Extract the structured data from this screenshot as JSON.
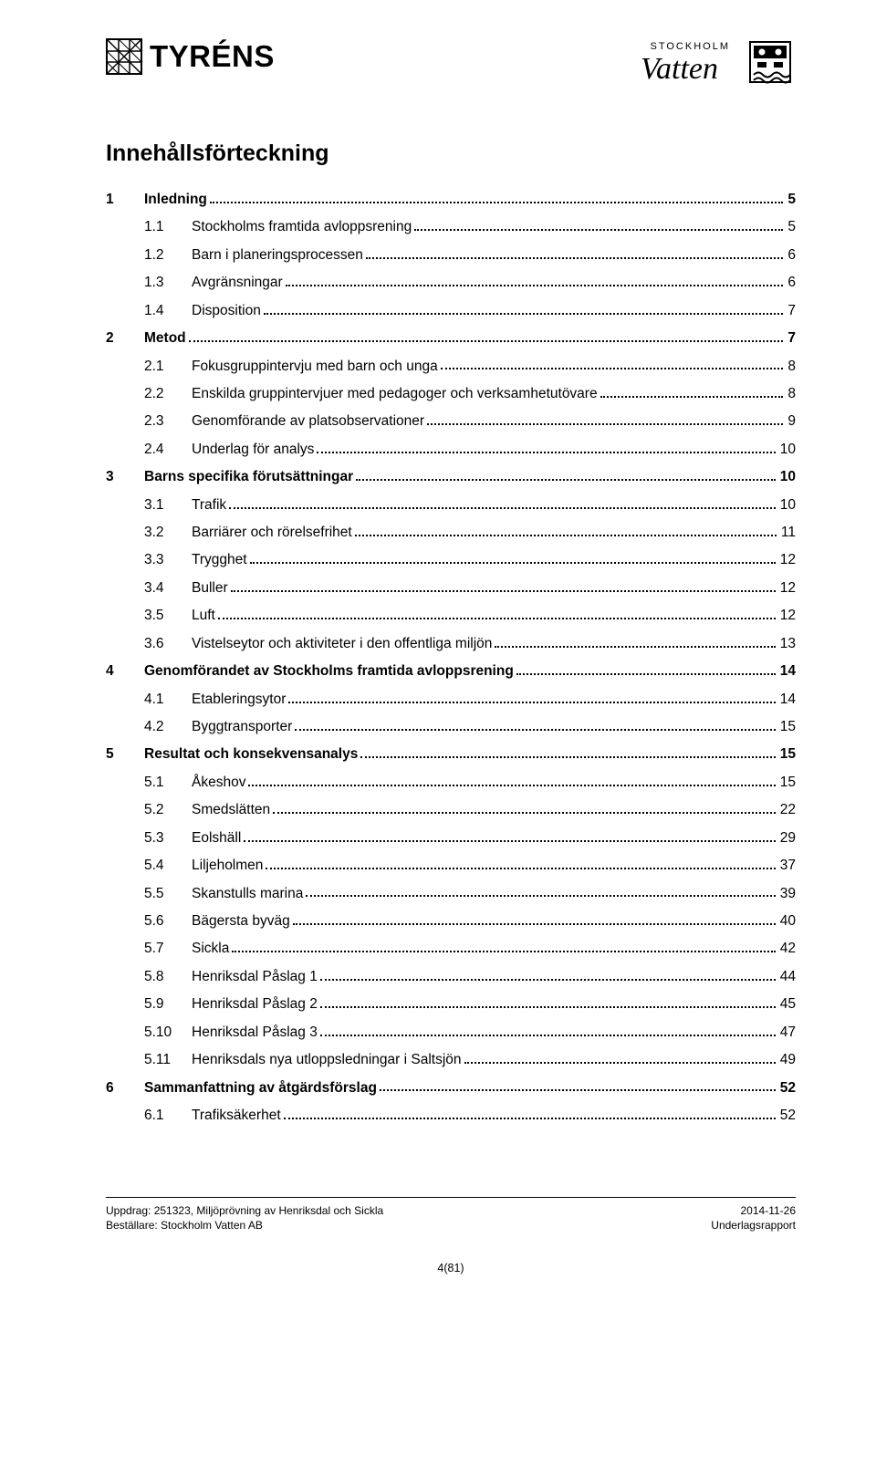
{
  "header": {
    "logo_left_text": "TYRÉNS",
    "logo_right_top": "STOCKHOLM",
    "logo_right_main": "Vatten"
  },
  "title": "Innehållsförteckning",
  "toc": [
    {
      "level": 1,
      "num": "1",
      "label": "Inledning",
      "page": "5"
    },
    {
      "level": 2,
      "num": "1.1",
      "label": "Stockholms framtida avloppsrening",
      "page": "5"
    },
    {
      "level": 2,
      "num": "1.2",
      "label": "Barn i planeringsprocessen",
      "page": "6"
    },
    {
      "level": 2,
      "num": "1.3",
      "label": "Avgränsningar",
      "page": "6"
    },
    {
      "level": 2,
      "num": "1.4",
      "label": "Disposition",
      "page": "7"
    },
    {
      "level": 1,
      "num": "2",
      "label": "Metod",
      "page": "7"
    },
    {
      "level": 2,
      "num": "2.1",
      "label": "Fokusgruppintervju med barn och unga",
      "page": "8"
    },
    {
      "level": 2,
      "num": "2.2",
      "label": "Enskilda gruppintervjuer med pedagoger och verksamhetutövare",
      "page": "8"
    },
    {
      "level": 2,
      "num": "2.3",
      "label": "Genomförande av platsobservationer",
      "page": "9"
    },
    {
      "level": 2,
      "num": "2.4",
      "label": "Underlag för analys",
      "page": "10"
    },
    {
      "level": 1,
      "num": "3",
      "label": "Barns specifika förutsättningar",
      "page": "10"
    },
    {
      "level": 2,
      "num": "3.1",
      "label": "Trafik",
      "page": "10"
    },
    {
      "level": 2,
      "num": "3.2",
      "label": "Barriärer och rörelsefrihet",
      "page": "11"
    },
    {
      "level": 2,
      "num": "3.3",
      "label": "Trygghet",
      "page": "12"
    },
    {
      "level": 2,
      "num": "3.4",
      "label": "Buller",
      "page": "12"
    },
    {
      "level": 2,
      "num": "3.5",
      "label": "Luft",
      "page": "12"
    },
    {
      "level": 2,
      "num": "3.6",
      "label": "Vistelseytor och aktiviteter i den offentliga miljön",
      "page": "13"
    },
    {
      "level": 1,
      "num": "4",
      "label": "Genomförandet av Stockholms framtida avloppsrening",
      "page": "14"
    },
    {
      "level": 2,
      "num": "4.1",
      "label": "Etableringsytor",
      "page": "14"
    },
    {
      "level": 2,
      "num": "4.2",
      "label": "Byggtransporter",
      "page": "15"
    },
    {
      "level": 1,
      "num": "5",
      "label": "Resultat och konsekvensanalys",
      "page": "15"
    },
    {
      "level": 2,
      "num": "5.1",
      "label": "Åkeshov",
      "page": "15"
    },
    {
      "level": 2,
      "num": "5.2",
      "label": "Smedslätten",
      "page": "22"
    },
    {
      "level": 2,
      "num": "5.3",
      "label": "Eolshäll",
      "page": "29"
    },
    {
      "level": 2,
      "num": "5.4",
      "label": "Liljeholmen",
      "page": "37"
    },
    {
      "level": 2,
      "num": "5.5",
      "label": "Skanstulls marina",
      "page": "39"
    },
    {
      "level": 2,
      "num": "5.6",
      "label": "Bägersta byväg",
      "page": "40"
    },
    {
      "level": 2,
      "num": "5.7",
      "label": "Sickla",
      "page": "42"
    },
    {
      "level": 2,
      "num": "5.8",
      "label": "Henriksdal Påslag 1",
      "page": "44"
    },
    {
      "level": 2,
      "num": "5.9",
      "label": "Henriksdal Påslag 2",
      "page": "45"
    },
    {
      "level": 2,
      "num": "5.10",
      "label": "Henriksdal Påslag 3",
      "page": "47"
    },
    {
      "level": 2,
      "num": "5.11",
      "label": "Henriksdals nya utloppsledningar i Saltsjön",
      "page": "49"
    },
    {
      "level": 1,
      "num": "6",
      "label": "Sammanfattning av åtgärdsförslag",
      "page": "52"
    },
    {
      "level": 2,
      "num": "6.1",
      "label": "Trafiksäkerhet",
      "page": "52"
    }
  ],
  "footer": {
    "left_line1": "Uppdrag: 251323, Miljöprövning av Henriksdal och Sickla",
    "left_line2": "Beställare: Stockholm Vatten AB",
    "right_line1": "2014-11-26",
    "right_line2": "Underlagsrapport"
  },
  "page_number": "4(81)"
}
